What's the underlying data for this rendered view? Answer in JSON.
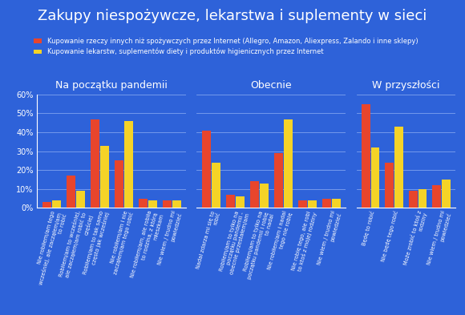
{
  "title": "Zakupy niespożywcze, lekarstwa i suplementy w sieci",
  "chart_data": [
    {
      "type": "bar",
      "title": "Na początku pandemii",
      "categories": [
        "Nie robiłem/am tego wcześniej, ale zacząłem/am to robić",
        "Robiłem/am to wcześniej, ale zacząłem/am robić to częściej",
        "Robiłem/am to tak samo często jak wcześniej",
        "Nie robiłem/am i nie zacząłem/am tego robić",
        "Nie robiłem/am, ale robiła to rodzina, z którą mieszkam",
        "Nie wiem / trudno mi powiedzieć"
      ],
      "series": [
        {
          "name": "Kupowanie rzeczy innych niż spożywczych przez Internet (Allegro, Amazon, Aliexpress, Zalando i inne sklepy)",
          "color": "#e8452c",
          "values": [
            3,
            17,
            47,
            25,
            5,
            4
          ]
        },
        {
          "name": "Kupowanie lekarstw, suplementów diety i produktów higienicznych przez Internet",
          "color": "#f5d327",
          "values": [
            4,
            9,
            33,
            46,
            4,
            4
          ]
        }
      ],
      "ylim": [
        0,
        60
      ],
      "yticks": [
        {
          "value": 0,
          "label": "0%"
        },
        {
          "value": 10,
          "label": "10%"
        },
        {
          "value": 20,
          "label": "20%"
        },
        {
          "value": 30,
          "label": "30%"
        },
        {
          "value": 40,
          "label": "40%"
        },
        {
          "value": 50,
          "label": "50%"
        },
        {
          "value": 60,
          "label": "60%"
        }
      ],
      "grid": true,
      "legend": "upper left"
    },
    {
      "type": "bar",
      "title": "Obecnie",
      "categories": [
        "Nadal zdarza mi się to robić",
        "Robiłem/am to tylko na początku pandemii - obecnie przestałem/am",
        "Robiłem/am to tylko na początku pandemii i robię to nadal",
        "Nie robiłem/am i nadal tego nie robię",
        "Nie robię tego, ale robi to ktoś z mojej rodziny",
        "Nie wiem / trudno mi powiedzieć"
      ],
      "series": [
        {
          "name": "Kupowanie rzeczy innych niż spożywczych przez Internet (Allegro, Amazon, Aliexpress, Zalando i inne sklepy)",
          "color": "#e8452c",
          "values": [
            41,
            7,
            14,
            29,
            4,
            5
          ]
        },
        {
          "name": "Kupowanie lekarstw, suplementów diety i produktów higienicznych przez Internet",
          "color": "#f5d327",
          "values": [
            24,
            6,
            13,
            47,
            4,
            5
          ]
        }
      ],
      "ylim": [
        0,
        60
      ],
      "yticks": [
        {
          "value": 0,
          "label": "0%"
        },
        {
          "value": 10,
          "label": "10%"
        },
        {
          "value": 20,
          "label": "20%"
        },
        {
          "value": 30,
          "label": "30%"
        },
        {
          "value": 40,
          "label": "40%"
        },
        {
          "value": 50,
          "label": "50%"
        },
        {
          "value": 60,
          "label": "60%"
        }
      ],
      "grid": true,
      "tick_labels": "x"
    },
    {
      "type": "bar",
      "title": "W przyszłości",
      "categories": [
        "Będę to robić",
        "Nie będę tego robić",
        "Może zrobić to ktoś z rodziny",
        "Nie wiem / trudno mi powiedzieć"
      ],
      "series": [
        {
          "name": "Kupowanie rzeczy innych niż spożywczych przez Internet (Allegro, Amazon, Aliexpress, Zalando i inne sklepy)",
          "color": "#e8452c",
          "values": [
            55,
            24,
            9,
            12
          ]
        },
        {
          "name": "Kupowanie lekarstw, suplementów diety i produktów higienicznych przez Internet",
          "color": "#f5d327",
          "values": [
            32,
            43,
            10,
            15
          ]
        }
      ],
      "ylim": [
        0,
        60
      ],
      "yticks": [
        {
          "value": 0,
          "label": "0%"
        },
        {
          "value": 10,
          "label": "10%"
        },
        {
          "value": 20,
          "label": "20%"
        },
        {
          "value": 30,
          "label": "30%"
        },
        {
          "value": 40,
          "label": "40%"
        },
        {
          "value": 50,
          "label": "50%"
        },
        {
          "value": 60,
          "label": "60%"
        }
      ],
      "grid": true,
      "tick_labels": "x"
    }
  ]
}
